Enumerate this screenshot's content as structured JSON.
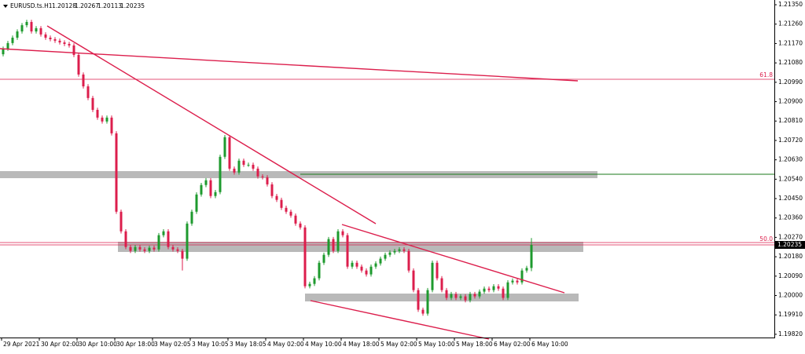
{
  "chart_data": {
    "type": "candlestick",
    "title": "EURUSD.ts.H1",
    "categories": [
      "29 Apr 2021",
      null,
      null,
      null,
      null,
      null,
      null,
      null,
      "30 Apr 02:00",
      null,
      null,
      null,
      null,
      null,
      null,
      null,
      "30 Apr 10:00",
      null,
      null,
      null,
      null,
      null,
      null,
      null,
      "30 Apr 18:00",
      null,
      null,
      null,
      null,
      null,
      null,
      null,
      "3 May 02:05",
      null,
      null,
      null,
      null,
      null,
      null,
      null,
      "3 May 10:05",
      null,
      null,
      null,
      null,
      null,
      null,
      null,
      "3 May 18:05",
      null,
      null,
      null,
      null,
      null,
      null,
      null,
      "4 May 02:00",
      null,
      null,
      null,
      null,
      null,
      null,
      null,
      "4 May 10:00",
      null,
      null,
      null,
      null,
      null,
      null,
      null,
      "4 May 18:00",
      null,
      null,
      null,
      null,
      null,
      null,
      null,
      "5 May 02:00",
      null,
      null,
      null,
      null,
      null,
      null,
      null,
      "5 May 10:00",
      null,
      null,
      null,
      null,
      null,
      null,
      null,
      "5 May 18:00",
      null,
      null,
      null,
      null,
      null,
      null,
      null,
      "6 May 02:00",
      null,
      null,
      null,
      null,
      null,
      null,
      null,
      "6 May 10:00"
    ],
    "open": [
      1.2112,
      1.21146,
      1.21172,
      1.21197,
      1.21226,
      1.21255,
      1.2127,
      1.21226,
      1.21241,
      1.21212,
      1.21197,
      1.2119,
      1.21183,
      1.21175,
      1.21168,
      1.21161,
      1.21117,
      1.21026,
      1.20971,
      1.20917,
      1.20862,
      1.20826,
      1.20808,
      1.20826,
      1.20753,
      1.20389,
      1.20298,
      1.20225,
      1.20207,
      1.20225,
      1.20214,
      1.20207,
      1.20222,
      1.20214,
      1.2028,
      1.20298,
      1.20225,
      1.20214,
      1.20207,
      1.20171,
      1.20334,
      1.20389,
      1.20469,
      1.20513,
      1.20535,
      1.20462,
      1.2048,
      1.20644,
      1.20735,
      1.20589,
      1.20571,
      1.20626,
      1.20607,
      1.20607,
      1.20589,
      1.20553,
      1.20549,
      1.20516,
      1.20462,
      1.20444,
      1.20407,
      1.20389,
      1.20371,
      1.20334,
      1.20316,
      1.20043,
      1.20054,
      1.2008,
      1.20152,
      1.20189,
      1.20262,
      1.20207,
      1.20298,
      1.2028,
      1.20134,
      1.20152,
      1.20134,
      1.20116,
      1.20098,
      1.20134,
      1.20149,
      1.20171,
      1.20189,
      1.202,
      1.20207,
      1.20214,
      1.20207,
      1.20116,
      1.20025,
      1.19934,
      1.19916,
      1.20025,
      1.20152,
      1.2008,
      1.20025,
      1.19989,
      1.20007,
      1.19989,
      1.19996,
      1.19978,
      1.20007,
      1.19996,
      1.20018,
      1.20032,
      1.20025,
      1.20043,
      1.20032,
      1.19989,
      1.20061,
      1.20069,
      1.20061,
      1.20116,
      1.20128
    ],
    "high": [
      1.21156,
      1.21182,
      1.21207,
      1.21236,
      1.21265,
      1.2128,
      1.2128,
      1.21251,
      1.21251,
      1.21222,
      1.21207,
      1.212,
      1.21193,
      1.21185,
      1.21178,
      1.21171,
      1.21127,
      1.21036,
      1.20981,
      1.20927,
      1.20872,
      1.20836,
      1.20836,
      1.20836,
      1.20763,
      1.20399,
      1.20308,
      1.20235,
      1.20235,
      1.20235,
      1.20224,
      1.20232,
      1.20232,
      1.2029,
      1.20308,
      1.20308,
      1.20235,
      1.20224,
      1.20217,
      1.20344,
      1.20399,
      1.20479,
      1.20523,
      1.20545,
      1.20545,
      1.2049,
      1.20654,
      1.20745,
      1.20745,
      1.20599,
      1.20636,
      1.20636,
      1.20617,
      1.20617,
      1.20599,
      1.20563,
      1.20559,
      1.20526,
      1.20472,
      1.20454,
      1.20417,
      1.20399,
      1.20381,
      1.20344,
      1.20326,
      1.20064,
      1.2009,
      1.20162,
      1.20199,
      1.20272,
      1.20272,
      1.20308,
      1.20308,
      1.2029,
      1.20162,
      1.20162,
      1.20144,
      1.20126,
      1.20144,
      1.20159,
      1.20181,
      1.20199,
      1.2021,
      1.20217,
      1.20224,
      1.20224,
      1.20217,
      1.20126,
      1.20035,
      1.19944,
      1.20035,
      1.20162,
      1.20162,
      1.2009,
      1.20035,
      1.20017,
      1.20017,
      1.20006,
      1.20006,
      1.20017,
      1.20017,
      1.20028,
      1.20042,
      1.20042,
      1.20053,
      1.20053,
      1.20042,
      1.20071,
      1.20079,
      1.20079,
      1.20126,
      1.20138,
      1.20267
    ],
    "low": [
      1.2111,
      1.21136,
      1.21162,
      1.21187,
      1.21216,
      1.21245,
      1.21216,
      1.21216,
      1.21202,
      1.21187,
      1.2118,
      1.21173,
      1.21165,
      1.21158,
      1.21151,
      1.21107,
      1.21016,
      1.20961,
      1.20907,
      1.20852,
      1.20816,
      1.20798,
      1.20798,
      1.20743,
      1.20379,
      1.20288,
      1.20215,
      1.20197,
      1.20197,
      1.20204,
      1.20197,
      1.20197,
      1.20204,
      1.20204,
      1.2027,
      1.20215,
      1.20204,
      1.20197,
      1.20116,
      1.20161,
      1.20324,
      1.20379,
      1.20459,
      1.20503,
      1.20452,
      1.20452,
      1.2047,
      1.20634,
      1.20579,
      1.20561,
      1.20561,
      1.20597,
      1.20597,
      1.20579,
      1.20543,
      1.20539,
      1.20506,
      1.20452,
      1.20434,
      1.20397,
      1.20379,
      1.20361,
      1.20324,
      1.20306,
      1.20033,
      1.20033,
      1.20044,
      1.2007,
      1.20142,
      1.20179,
      1.20197,
      1.20197,
      1.2027,
      1.20124,
      1.20124,
      1.20124,
      1.20106,
      1.20088,
      1.20088,
      1.20124,
      1.20139,
      1.20161,
      1.20179,
      1.2019,
      1.20197,
      1.20197,
      1.20106,
      1.20015,
      1.19924,
      1.19906,
      1.19906,
      1.20015,
      1.2007,
      1.20015,
      1.19979,
      1.19979,
      1.19979,
      1.19979,
      1.19968,
      1.19968,
      1.19986,
      1.19986,
      1.20008,
      1.20015,
      1.20015,
      1.20022,
      1.19979,
      1.19979,
      1.20051,
      1.20051,
      1.20051,
      1.20106,
      1.20113
    ],
    "close": [
      1.21146,
      1.21172,
      1.21197,
      1.21226,
      1.21255,
      1.2127,
      1.21226,
      1.21241,
      1.21212,
      1.21197,
      1.2119,
      1.21183,
      1.21175,
      1.21168,
      1.21161,
      1.21117,
      1.21026,
      1.20971,
      1.20917,
      1.20862,
      1.20826,
      1.20808,
      1.20826,
      1.20753,
      1.20389,
      1.20298,
      1.20225,
      1.20207,
      1.20225,
      1.20214,
      1.20207,
      1.20222,
      1.20214,
      1.2028,
      1.20298,
      1.20225,
      1.20214,
      1.20207,
      1.20171,
      1.20334,
      1.20389,
      1.20469,
      1.20513,
      1.20535,
      1.20462,
      1.2048,
      1.20644,
      1.20735,
      1.20589,
      1.20571,
      1.20626,
      1.20607,
      1.20607,
      1.20589,
      1.20553,
      1.20549,
      1.20516,
      1.20462,
      1.20444,
      1.20407,
      1.20389,
      1.20371,
      1.20334,
      1.20316,
      1.20043,
      1.20054,
      1.2008,
      1.20152,
      1.20189,
      1.20262,
      1.20207,
      1.20298,
      1.2028,
      1.20134,
      1.20152,
      1.20134,
      1.20116,
      1.20098,
      1.20134,
      1.20149,
      1.20171,
      1.20189,
      1.202,
      1.20207,
      1.20214,
      1.20207,
      1.20116,
      1.20025,
      1.19934,
      1.19916,
      1.20025,
      1.20152,
      1.2008,
      1.20025,
      1.19989,
      1.20007,
      1.19989,
      1.19996,
      1.19978,
      1.20007,
      1.19996,
      1.20018,
      1.20032,
      1.20025,
      1.20043,
      1.20032,
      1.19989,
      1.20061,
      1.20069,
      1.20061,
      1.20116,
      1.20128,
      1.20235
    ],
    "up_color": "#1e9a2e",
    "down_color": "#dc1e4c",
    "ylim": [
      1.19805,
      1.21372
    ],
    "yticks": [
      {
        "value": 1.2135,
        "label": "1.21350"
      },
      {
        "value": 1.2126,
        "label": "1.21260"
      },
      {
        "value": 1.2117,
        "label": "1.21170"
      },
      {
        "value": 1.2108,
        "label": "1.21080"
      },
      {
        "value": 1.2099,
        "label": "1.20990"
      },
      {
        "value": 1.209,
        "label": "1.20900"
      },
      {
        "value": 1.2081,
        "label": "1.20810"
      },
      {
        "value": 1.2072,
        "label": "1.20720"
      },
      {
        "value": 1.2063,
        "label": "1.20630"
      },
      {
        "value": 1.2054,
        "label": "1.20540"
      },
      {
        "value": 1.2045,
        "label": "1.20450"
      },
      {
        "value": 1.2036,
        "label": "1.20360"
      },
      {
        "value": 1.2027,
        "label": "1.20270"
      },
      {
        "value": 1.2018,
        "label": "1.20180"
      },
      {
        "value": 1.2009,
        "label": "1.20090"
      },
      {
        "value": 1.2,
        "label": "1.20000"
      },
      {
        "value": 1.1991,
        "label": "1.19910"
      },
      {
        "value": 1.1982,
        "label": "1.19820"
      }
    ],
    "annotations": [
      "61.8",
      "50.0"
    ]
  }
}
